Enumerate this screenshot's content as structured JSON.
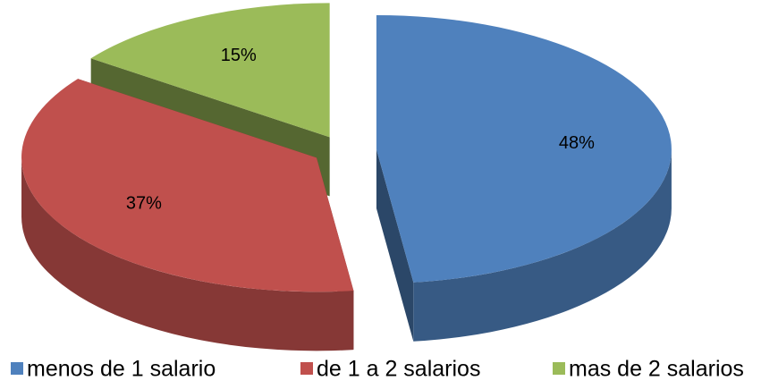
{
  "chart_data": {
    "type": "pie3d",
    "categories": [
      "menos de 1 salario",
      "de 1 a 2 salarios",
      "mas de 2 salarios"
    ],
    "values": [
      48,
      37,
      15
    ],
    "value_labels": [
      "48%",
      "37%",
      "15%"
    ],
    "colors": [
      "#4f81bd",
      "#c0504d",
      "#9bbb59"
    ],
    "legend": "bottom"
  }
}
